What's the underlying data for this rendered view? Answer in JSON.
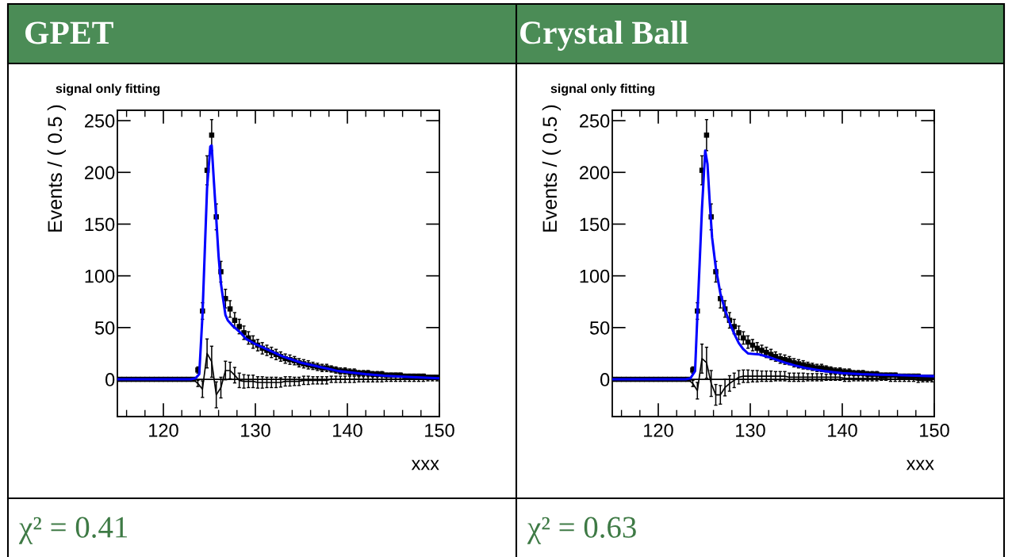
{
  "chart_data": [
    {
      "type": "scatter",
      "title": "GPET",
      "subtitle": "signal only fitting",
      "xlabel": "xxx",
      "ylabel": "Events / ( 0.5 )",
      "annotations": [
        "χ² = 0.41"
      ],
      "xlim": [
        115,
        150
      ],
      "xticks": [
        120,
        130,
        140,
        150
      ],
      "ylim": [
        -36,
        260
      ],
      "yticks": [
        0,
        50,
        100,
        150,
        200,
        250
      ],
      "ref_lines": [
        {
          "axis": "y",
          "value": 0,
          "color": "#000000"
        }
      ],
      "x": [
        115.25,
        115.75,
        116.25,
        116.75,
        117.25,
        117.75,
        118.25,
        118.75,
        119.25,
        119.75,
        120.25,
        120.75,
        121.25,
        121.75,
        122.25,
        122.75,
        123.25,
        123.75,
        124.25,
        124.75,
        125.25,
        125.75,
        126.25,
        126.75,
        127.25,
        127.75,
        128.25,
        128.75,
        129.25,
        129.75,
        130.25,
        130.75,
        131.25,
        131.75,
        132.25,
        132.75,
        133.25,
        133.75,
        134.25,
        134.75,
        135.25,
        135.75,
        136.25,
        136.75,
        137.25,
        137.75,
        138.25,
        138.75,
        139.25,
        139.75,
        140.25,
        140.75,
        141.25,
        141.75,
        142.25,
        142.75,
        143.25,
        143.75,
        144.25,
        144.75,
        145.25,
        145.75,
        146.25,
        146.75,
        147.25,
        147.75,
        148.25,
        148.75,
        149.25,
        149.75
      ],
      "series": [
        {
          "color": "#000000",
          "marker": "square",
          "values": [
            0,
            0,
            0,
            0,
            0,
            0,
            0,
            0,
            0,
            0,
            0,
            0,
            0,
            0,
            0,
            0,
            0,
            9,
            66,
            202,
            236,
            157,
            104,
            78,
            68,
            57,
            51,
            45,
            40,
            36,
            33,
            30,
            28,
            26,
            24,
            22,
            20,
            19,
            18,
            16,
            15,
            14,
            13,
            12,
            11,
            11,
            10,
            9,
            8,
            8,
            7,
            7,
            6,
            6,
            6,
            5,
            5,
            5,
            4,
            4,
            4,
            4,
            3,
            3,
            3,
            3,
            3,
            2,
            2,
            2
          ],
          "errors": [
            null,
            null,
            null,
            null,
            null,
            null,
            null,
            null,
            null,
            null,
            null,
            null,
            null,
            null,
            null,
            null,
            null,
            3,
            8,
            14,
            15,
            12.5,
            10,
            9,
            8,
            7.5,
            7,
            6.5,
            6,
            6,
            5.5,
            5.5,
            5,
            5,
            5,
            4.5,
            4.5,
            4.5,
            4,
            4,
            4,
            4,
            3.5,
            3.5,
            3.5,
            3.5,
            3,
            3,
            3,
            3,
            3,
            3,
            2.5,
            2.5,
            2.5,
            2.5,
            2.5,
            2.5,
            2,
            2,
            2,
            2,
            2,
            2,
            2,
            2,
            2,
            1.5,
            1.5,
            1.5
          ]
        },
        {
          "type": "line",
          "color": "#0000ff",
          "x": [
            115,
            123,
            123.5,
            123.9,
            124.25,
            124.5,
            124.75,
            125.1,
            125.25,
            125.5,
            125.75,
            126,
            126.25,
            126.5,
            126.75,
            127,
            127.5,
            128,
            128.5,
            129,
            130,
            131,
            132,
            133,
            134,
            135,
            136,
            137,
            138,
            139,
            140,
            142,
            144,
            146,
            148,
            150
          ],
          "values": [
            0,
            0,
            1,
            5,
            62,
            124,
            185,
            225,
            226,
            190,
            155,
            119,
            93,
            77,
            62,
            57,
            52,
            48,
            44,
            39,
            34,
            30,
            26,
            22,
            19,
            16,
            14,
            12,
            10,
            8,
            7,
            5,
            3.5,
            2.5,
            1.7,
            1
          ]
        },
        {
          "type": "line",
          "color": "#000000",
          "values": [
            0,
            0,
            0,
            0,
            0,
            0,
            0,
            0,
            0,
            0,
            0,
            0,
            0,
            0,
            0,
            0,
            0,
            -4,
            -9.5,
            25,
            17,
            -15,
            -8,
            8.5,
            8.5,
            4,
            -1,
            -2,
            -2,
            -2,
            -3,
            -3,
            -3,
            -3,
            -3,
            -3,
            -2,
            -2,
            -2,
            -2,
            -1,
            -1,
            -1,
            -1,
            -1,
            -1,
            0,
            0,
            0,
            0,
            0,
            0,
            0,
            0,
            0,
            0,
            0,
            0,
            0,
            0,
            0,
            0,
            0,
            0,
            0,
            0,
            0,
            0,
            0,
            0
          ],
          "errors": [
            null,
            null,
            null,
            null,
            null,
            null,
            null,
            null,
            null,
            null,
            null,
            null,
            null,
            null,
            null,
            null,
            null,
            3,
            8,
            14,
            15,
            12.5,
            10,
            9,
            8,
            7.5,
            7,
            6.5,
            6,
            6,
            5.5,
            5.5,
            5,
            5,
            5,
            4.5,
            4.5,
            4.5,
            4,
            4,
            4,
            4,
            3.5,
            3.5,
            3.5,
            3.5,
            3,
            3,
            3,
            3,
            3,
            3,
            2.5,
            2.5,
            2.5,
            2.5,
            2.5,
            2.5,
            2,
            2,
            2,
            2,
            2,
            2,
            2,
            2,
            2,
            1.5,
            1.5,
            1.5
          ]
        }
      ]
    },
    {
      "type": "scatter",
      "title": "Crystal Ball",
      "subtitle": "signal only fitting",
      "xlabel": "xxx",
      "ylabel": "Events / ( 0.5 )",
      "annotations": [
        "χ² = 0.63"
      ],
      "xlim": [
        115,
        150
      ],
      "xticks": [
        120,
        130,
        140,
        150
      ],
      "ylim": [
        -36,
        260
      ],
      "yticks": [
        0,
        50,
        100,
        150,
        200,
        250
      ],
      "ref_lines": [
        {
          "axis": "y",
          "value": 0,
          "color": "#000000"
        }
      ],
      "x": [
        115.25,
        115.75,
        116.25,
        116.75,
        117.25,
        117.75,
        118.25,
        118.75,
        119.25,
        119.75,
        120.25,
        120.75,
        121.25,
        121.75,
        122.25,
        122.75,
        123.25,
        123.75,
        124.25,
        124.75,
        125.25,
        125.75,
        126.25,
        126.75,
        127.25,
        127.75,
        128.25,
        128.75,
        129.25,
        129.75,
        130.25,
        130.75,
        131.25,
        131.75,
        132.25,
        132.75,
        133.25,
        133.75,
        134.25,
        134.75,
        135.25,
        135.75,
        136.25,
        136.75,
        137.25,
        137.75,
        138.25,
        138.75,
        139.25,
        139.75,
        140.25,
        140.75,
        141.25,
        141.75,
        142.25,
        142.75,
        143.25,
        143.75,
        144.25,
        144.75,
        145.25,
        145.75,
        146.25,
        146.75,
        147.25,
        147.75,
        148.25,
        148.75,
        149.25,
        149.75
      ],
      "series": [
        {
          "color": "#000000",
          "marker": "square",
          "values": [
            0,
            0,
            0,
            0,
            0,
            0,
            0,
            0,
            0,
            0,
            0,
            0,
            0,
            0,
            0,
            0,
            0,
            9,
            66,
            202,
            236,
            157,
            104,
            78,
            68,
            57,
            51,
            45,
            40,
            36,
            33,
            30,
            28,
            26,
            24,
            22,
            20,
            19,
            18,
            16,
            15,
            14,
            13,
            12,
            11,
            11,
            10,
            9,
            8,
            8,
            7,
            7,
            6,
            6,
            6,
            5,
            5,
            5,
            4,
            4,
            4,
            4,
            3,
            3,
            3,
            3,
            3,
            2,
            2,
            2
          ],
          "errors": [
            null,
            null,
            null,
            null,
            null,
            null,
            null,
            null,
            null,
            null,
            null,
            null,
            null,
            null,
            null,
            null,
            null,
            3,
            8,
            14,
            15,
            12.5,
            10,
            9,
            8,
            7.5,
            7,
            6.5,
            6,
            6,
            5.5,
            5.5,
            5,
            5,
            5,
            4.5,
            4.5,
            4.5,
            4,
            4,
            4,
            4,
            3.5,
            3.5,
            3.5,
            3.5,
            3,
            3,
            3,
            3,
            3,
            3,
            2.5,
            2.5,
            2.5,
            2.5,
            2.5,
            2.5,
            2,
            2,
            2,
            2,
            2,
            2,
            2,
            2,
            2,
            1.5,
            1.5,
            1.5
          ]
        },
        {
          "type": "line",
          "color": "#0000ff",
          "x": [
            115,
            123,
            123.5,
            124,
            124.25,
            124.5,
            124.75,
            125.1,
            125.35,
            125.6,
            125.85,
            126.25,
            126.75,
            127.25,
            127.75,
            128.25,
            128.75,
            129.25,
            129.75,
            131,
            132,
            133,
            134,
            135,
            136,
            137,
            138,
            139,
            140,
            142,
            144,
            146,
            148,
            150
          ],
          "values": [
            0,
            0,
            1,
            8,
            62,
            113,
            165,
            221,
            208,
            170,
            137,
            108,
            83,
            67,
            55,
            44,
            35,
            29,
            25,
            24,
            21.5,
            18.5,
            15.5,
            13,
            11,
            9.5,
            8,
            7,
            6,
            5,
            4.5,
            4,
            3.5,
            3
          ]
        },
        {
          "type": "line",
          "color": "#000000",
          "values": [
            0,
            0,
            0,
            0,
            0,
            0,
            0,
            0,
            0,
            0,
            0,
            0,
            0,
            0,
            0,
            0,
            0,
            -4,
            -11,
            20,
            16,
            -4,
            -15,
            -15,
            -8,
            -4,
            -1,
            2,
            3,
            3,
            3,
            3,
            3,
            3,
            3,
            3,
            3,
            3,
            2,
            2,
            2,
            2,
            2,
            2,
            2,
            2,
            2,
            2,
            2,
            2,
            1,
            1,
            1,
            1,
            1,
            1,
            1,
            1,
            1,
            1,
            0,
            0,
            0,
            0,
            0,
            0,
            -1,
            -1,
            -1,
            -1
          ],
          "errors": [
            null,
            null,
            null,
            null,
            null,
            null,
            null,
            null,
            null,
            null,
            null,
            null,
            null,
            null,
            null,
            null,
            null,
            3,
            8,
            14,
            15,
            12.5,
            10,
            9,
            8,
            7.5,
            7,
            6.5,
            6,
            6,
            5.5,
            5.5,
            5,
            5,
            5,
            4.5,
            4.5,
            4.5,
            4,
            4,
            4,
            4,
            3.5,
            3.5,
            3.5,
            3.5,
            3,
            3,
            3,
            3,
            3,
            3,
            2.5,
            2.5,
            2.5,
            2.5,
            2.5,
            2.5,
            2,
            2,
            2,
            2,
            2,
            2,
            2,
            2,
            2,
            1.5,
            1.5,
            1.5
          ]
        }
      ]
    }
  ]
}
